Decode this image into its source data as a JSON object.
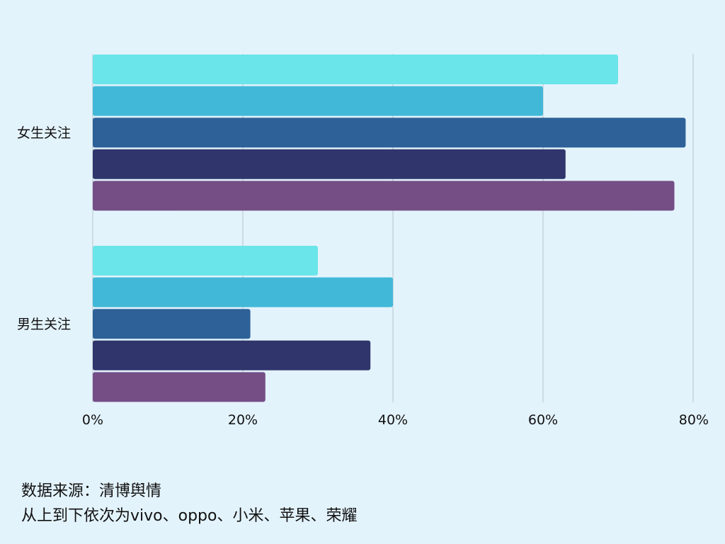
{
  "chart_data": {
    "type": "bar",
    "orientation": "horizontal",
    "categories": [
      "女生关注",
      "男生关注"
    ],
    "series": [
      {
        "values": [
          70,
          30
        ],
        "color": "#6ae5ea"
      },
      {
        "values": [
          60,
          40
        ],
        "color": "#42b8d8"
      },
      {
        "values": [
          79,
          21
        ],
        "color": "#2d6198"
      },
      {
        "values": [
          63,
          37
        ],
        "color": "#30356c"
      },
      {
        "values": [
          77.5,
          23
        ],
        "color": "#744e85"
      }
    ],
    "xlim": [
      0,
      80
    ],
    "x_ticks": [
      0,
      20,
      40,
      60,
      80
    ],
    "x_tick_labels": [
      "0%",
      "20%",
      "40%",
      "60%",
      "80%"
    ],
    "grid": true,
    "title": "",
    "xlabel": "",
    "ylabel": ""
  },
  "footer": {
    "source": "数据来源：清博舆情",
    "note": "从上到下依次为vivo、oppo、小米、苹果、荣耀"
  },
  "colors": {
    "background": "#e3f3fc",
    "grid": "#c6d3dc"
  }
}
